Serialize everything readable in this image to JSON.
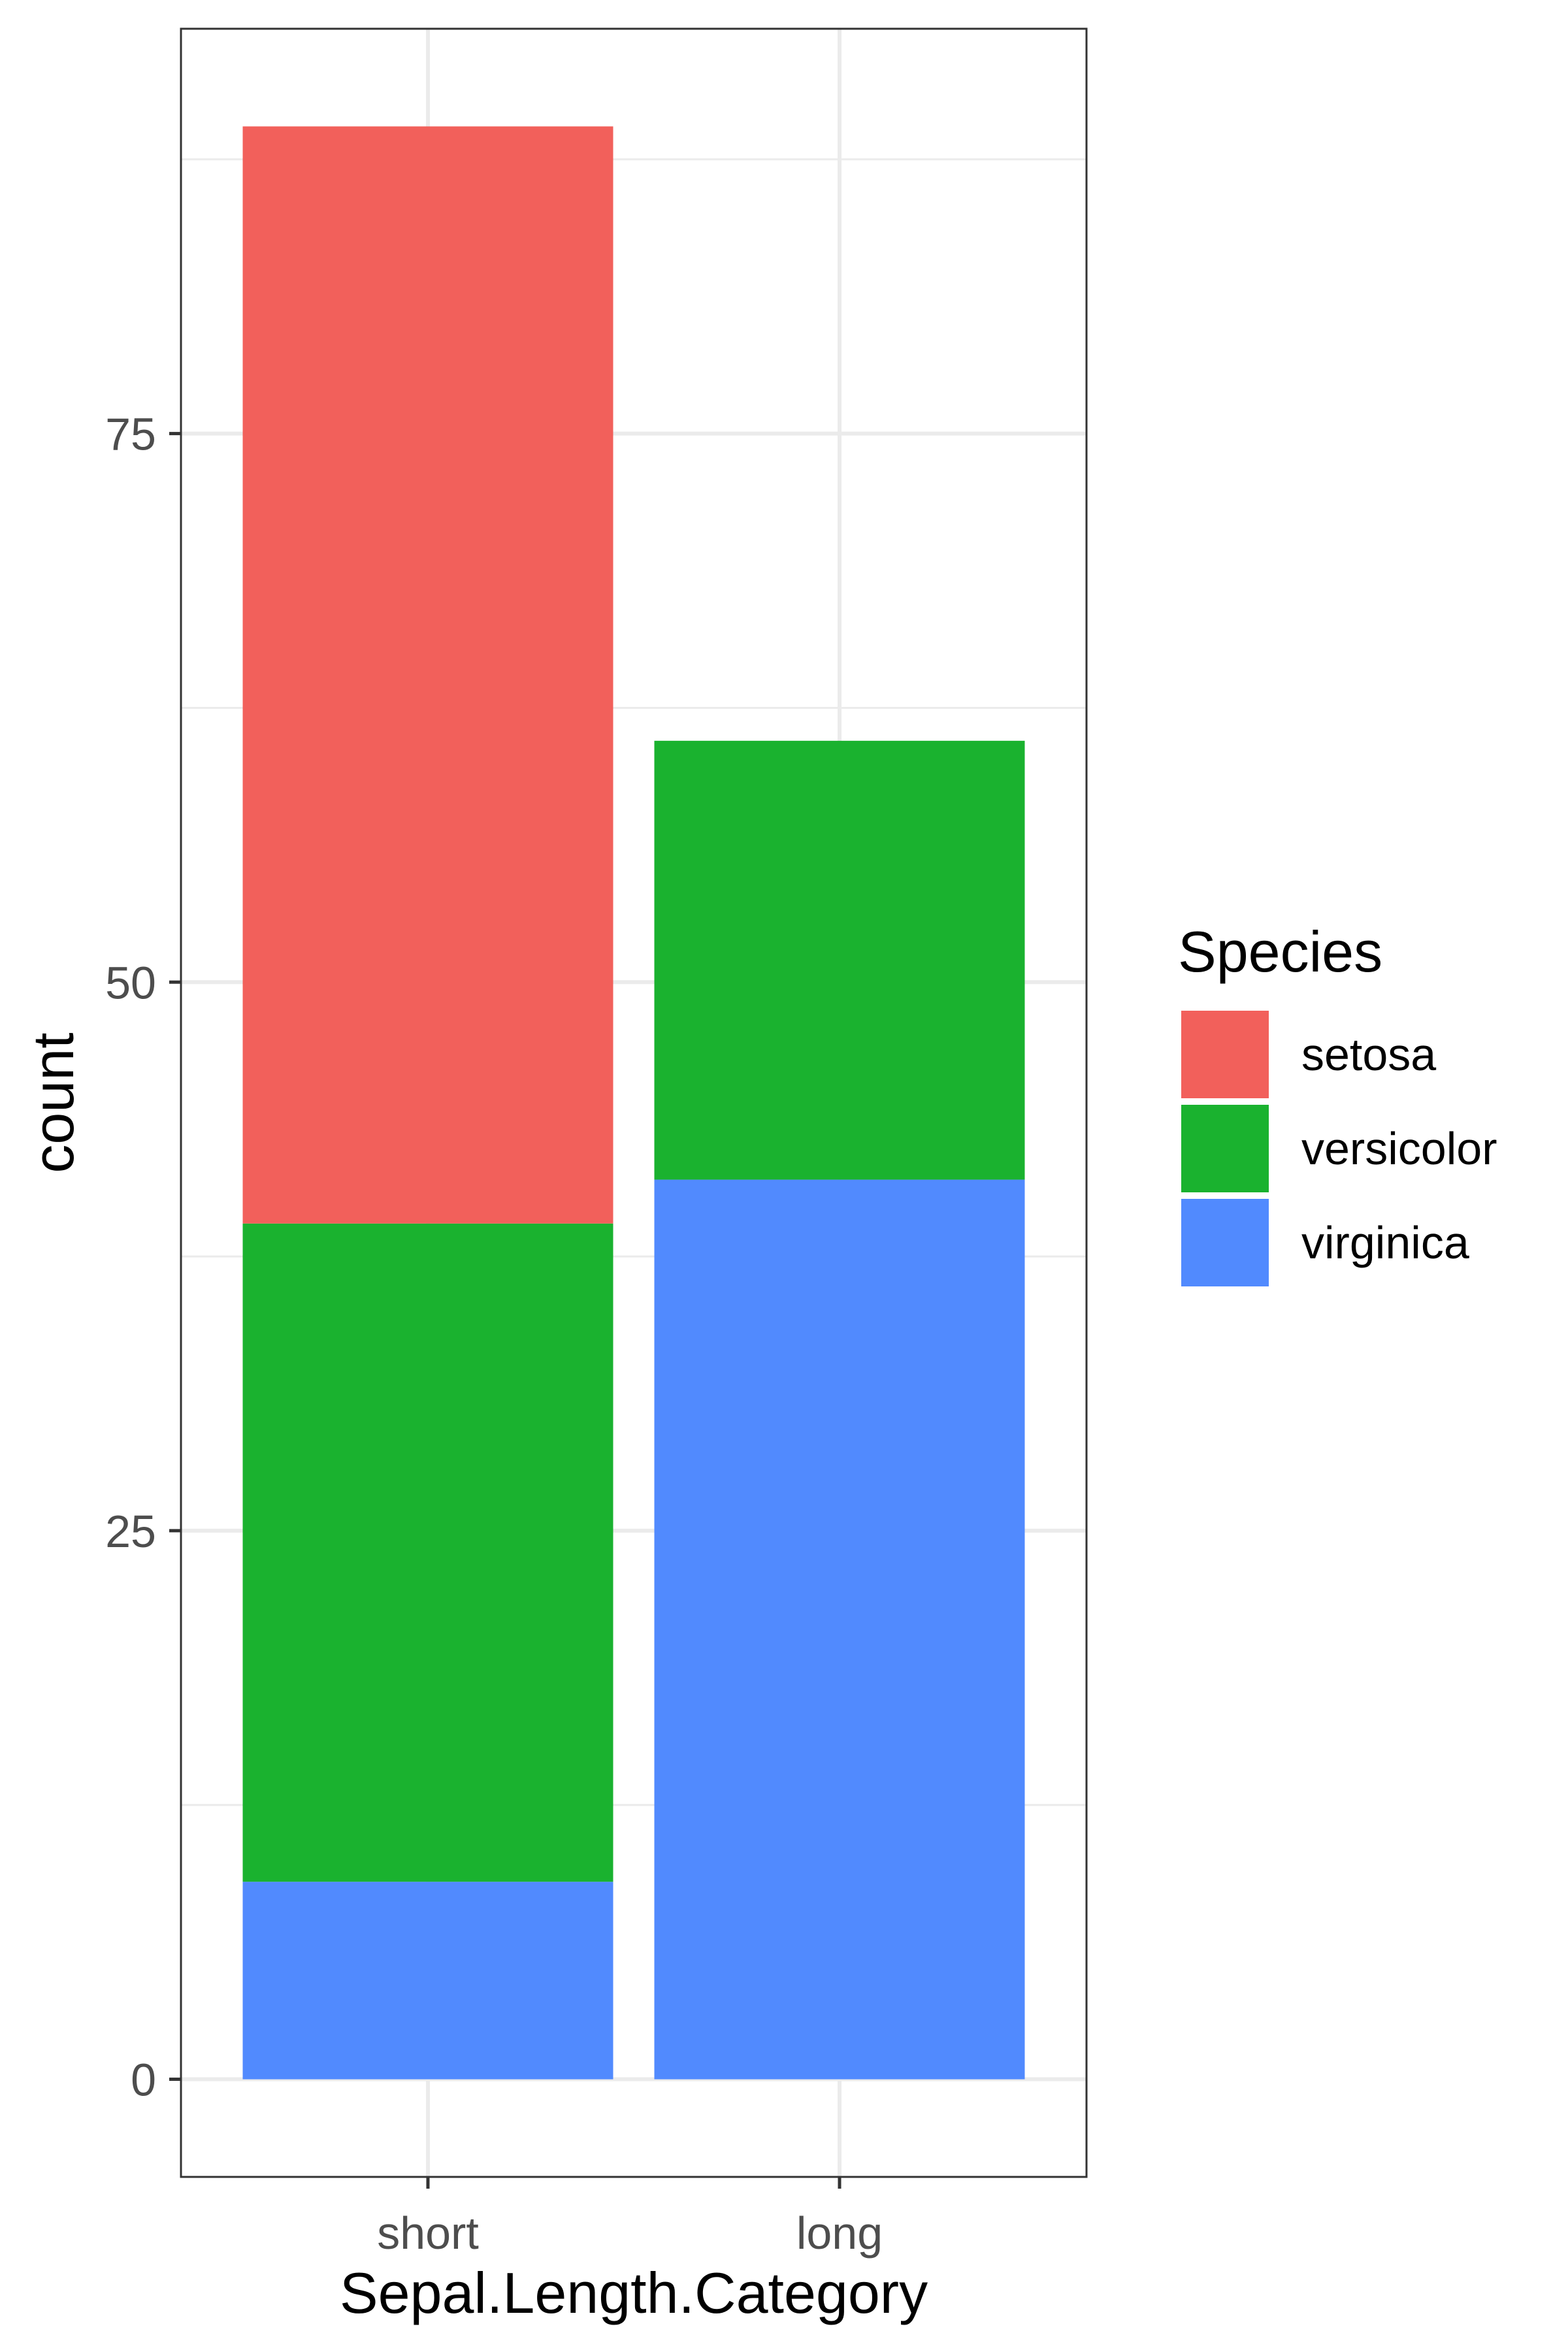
{
  "chart_data": {
    "type": "bar",
    "stacked": true,
    "categories": [
      "short",
      "long"
    ],
    "series": [
      {
        "name": "virginica",
        "color": "#518AFE",
        "values": [
          9,
          41
        ]
      },
      {
        "name": "versicolor",
        "color": "#1AB22F",
        "values": [
          30,
          20
        ]
      },
      {
        "name": "setosa",
        "color": "#F2605B",
        "values": [
          50,
          0
        ]
      }
    ],
    "xlabel": "Sepal.Length.Category",
    "ylabel": "count",
    "y_ticks": [
      0,
      25,
      50,
      75
    ],
    "ylim": [
      -4.45,
      93.45
    ],
    "grid": true,
    "legend": {
      "title": "Species",
      "position": "right",
      "entries": [
        "setosa",
        "versicolor",
        "virginica"
      ]
    }
  }
}
